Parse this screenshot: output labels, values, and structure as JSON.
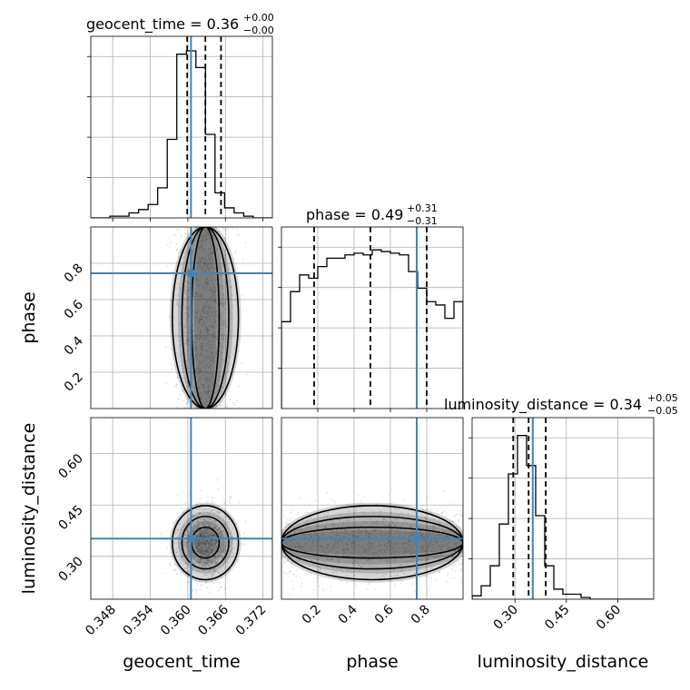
{
  "chart_data": {
    "type": "corner",
    "parameters": [
      "geocent_time",
      "phase",
      "luminosity_distance"
    ],
    "truth": {
      "geocent_time": 0.3605,
      "phase": 0.745,
      "luminosity_distance": 0.352
    },
    "truth_color": "#4682b4",
    "grid": true,
    "diagonal": [
      {
        "parameter": "geocent_time",
        "title_prefix": "geocent_time = 0.36",
        "title_sup": "+0.00",
        "title_sub": "−0.00",
        "median": 0.3628,
        "q16": 0.3599,
        "q84": 0.3653,
        "xlim": [
          0.3445,
          0.3735
        ],
        "hist_values": [
          0,
          0,
          0.01,
          0.01,
          0.03,
          0.05,
          0.08,
          0.18,
          0.47,
          0.98,
          1.0,
          0.9,
          0.5,
          0.15,
          0.06,
          0.03,
          0.01,
          0,
          0
        ]
      },
      {
        "parameter": "phase",
        "title_prefix": "phase = 0.49",
        "title_sup": "+0.31",
        "title_sub": "−0.31",
        "median": 0.49,
        "q16": 0.18,
        "q84": 0.8,
        "xlim": [
          0.0,
          1.0
        ],
        "hist_values": [
          0.52,
          0.7,
          0.8,
          0.78,
          0.85,
          0.9,
          0.9,
          0.92,
          0.93,
          0.92,
          0.95,
          0.94,
          0.93,
          0.92,
          0.82,
          0.72,
          0.64,
          0.62,
          0.54,
          0.64
        ]
      },
      {
        "parameter": "luminosity_distance",
        "title_prefix": "luminosity_distance = 0.34",
        "title_sup": "+0.05",
        "title_sub": "−0.05",
        "median": 0.34,
        "q16": 0.295,
        "q84": 0.39,
        "xlim": [
          0.175,
          0.705
        ],
        "hist_values": [
          0.02,
          0.08,
          0.2,
          0.45,
          0.75,
          0.98,
          0.8,
          0.5,
          0.2,
          0.06,
          0.03,
          0.03,
          0.01,
          0,
          0,
          0,
          0,
          0,
          0,
          0
        ]
      }
    ],
    "axes": {
      "geocent_time": {
        "ticks": [
          0.348,
          0.354,
          0.36,
          0.366,
          0.372
        ],
        "tick_labels": [
          "0.348",
          "0.354",
          "0.360",
          "0.366",
          "0.372"
        ]
      },
      "phase": {
        "ticks": [
          0.2,
          0.4,
          0.6,
          0.8
        ],
        "tick_labels": [
          "0.2",
          "0.4",
          "0.6",
          "0.8"
        ],
        "range": [
          0.0,
          1.0
        ]
      },
      "luminosity_distance": {
        "ticks": [
          0.3,
          0.45,
          0.6
        ],
        "tick_labels": [
          "0.30",
          "0.45",
          "0.60"
        ]
      }
    },
    "y_ranges": {
      "phase": [
        0.0,
        1.0
      ],
      "luminosity_distance": [
        0.175,
        0.705
      ]
    },
    "off_diagonal": [
      {
        "x": "geocent_time",
        "y": "phase",
        "center": [
          0.3628,
          0.5
        ],
        "spread": [
          0.0022,
          0.9
        ]
      },
      {
        "x": "geocent_time",
        "y": "luminosity_distance",
        "center": [
          0.3628,
          0.34
        ],
        "spread": [
          0.0022,
          0.045
        ]
      },
      {
        "x": "phase",
        "y": "luminosity_distance",
        "center": [
          0.5,
          0.34
        ],
        "spread": [
          1.0,
          0.045
        ]
      }
    ]
  }
}
